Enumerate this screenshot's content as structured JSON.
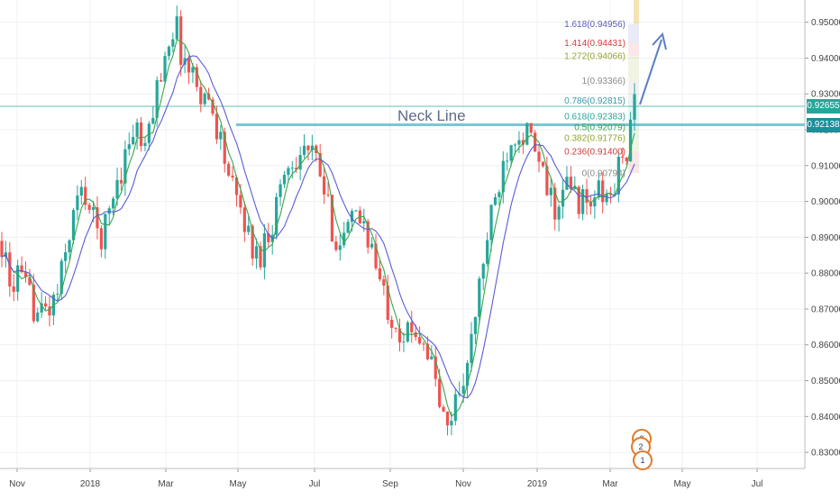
{
  "chart_data": {
    "type": "candlestick",
    "x_ticks": [
      "Nov",
      "2018",
      "Mar",
      "May",
      "Jul",
      "Sep",
      "Nov",
      "2019",
      "Mar",
      "May",
      "Jul"
    ],
    "y_ticks": [
      "0.83000",
      "0.84000",
      "0.85000",
      "0.86000",
      "0.87000",
      "0.88000",
      "0.89000",
      "0.90000",
      "0.91000",
      "0.92000",
      "0.93000",
      "0.94000",
      "0.95000"
    ],
    "ylim": [
      0.8255,
      0.9562
    ],
    "last_price": {
      "value": 0.92655,
      "label": "0.92655",
      "color": "#26a69a"
    },
    "neck_line": {
      "value": 0.92138,
      "label": "0.92138",
      "text": "Neck Line",
      "color": "#4fb3c2"
    },
    "fib_levels": [
      {
        "text": "1.618(0.94956)",
        "value": 0.94956,
        "color": "#5b5bbf"
      },
      {
        "text": "1.414(0.94431)",
        "value": 0.94431,
        "color": "#d23a3a"
      },
      {
        "text": "1.272(0.94066)",
        "value": 0.94066,
        "color": "#8fa62c"
      },
      {
        "text": "1(0.93366)",
        "value": 0.93366,
        "color": "#8a8a8a"
      },
      {
        "text": "0.786(0.92815)",
        "value": 0.92815,
        "color": "#3a9aa8"
      },
      {
        "text": "0.618(0.92383)",
        "value": 0.92383,
        "color": "#26a69a"
      },
      {
        "text": "0.5(0.92079)",
        "value": 0.92079,
        "color": "#3aa64a"
      },
      {
        "text": "0.382(0.91776)",
        "value": 0.91776,
        "color": "#8fa62c"
      },
      {
        "text": "0.236(0.91400)",
        "value": 0.914,
        "color": "#d23a3a"
      },
      {
        "text": "0(0.90794)",
        "value": 0.90794,
        "color": "#8a8a8a"
      }
    ],
    "series": [
      {
        "name": "",
        "kind": "ohlc",
        "values": [
          0.889,
          0.875,
          0.88,
          0.875,
          0.872,
          0.868,
          0.87,
          0.872,
          0.88,
          0.892,
          0.9,
          0.903,
          0.895,
          0.89,
          0.894,
          0.905,
          0.91,
          0.918,
          0.92,
          0.912,
          0.926,
          0.935,
          0.945,
          0.95,
          0.94,
          0.936,
          0.933,
          0.929,
          0.925,
          0.918,
          0.908,
          0.9,
          0.897,
          0.888,
          0.884,
          0.89,
          0.895,
          0.905,
          0.91,
          0.913,
          0.915,
          0.913,
          0.91,
          0.9,
          0.892,
          0.888,
          0.892,
          0.895,
          0.895,
          0.888,
          0.878,
          0.872,
          0.868,
          0.864,
          0.862,
          0.865,
          0.862,
          0.855,
          0.845,
          0.835,
          0.843,
          0.85,
          0.855,
          0.87,
          0.885,
          0.895,
          0.905,
          0.915,
          0.92,
          0.92,
          0.918,
          0.912,
          0.905,
          0.9,
          0.897,
          0.905,
          0.902,
          0.9,
          0.898,
          0.903,
          0.9,
          0.902,
          0.91,
          0.915,
          0.926
        ]
      },
      {
        "name": "",
        "kind": "ma-fast",
        "color": "#3aa64a"
      },
      {
        "name": "",
        "kind": "ma-slow",
        "color": "#5b5bd6"
      }
    ],
    "annotations": [
      {
        "kind": "arrow",
        "color": "#5b7fc2"
      },
      {
        "kind": "event-badge",
        "text": "2"
      },
      {
        "kind": "event-badge",
        "text": "2"
      },
      {
        "kind": "event-badge",
        "text": "1"
      }
    ],
    "grid": true,
    "colors": {
      "up": "#26a69a",
      "down": "#ef5350"
    }
  }
}
